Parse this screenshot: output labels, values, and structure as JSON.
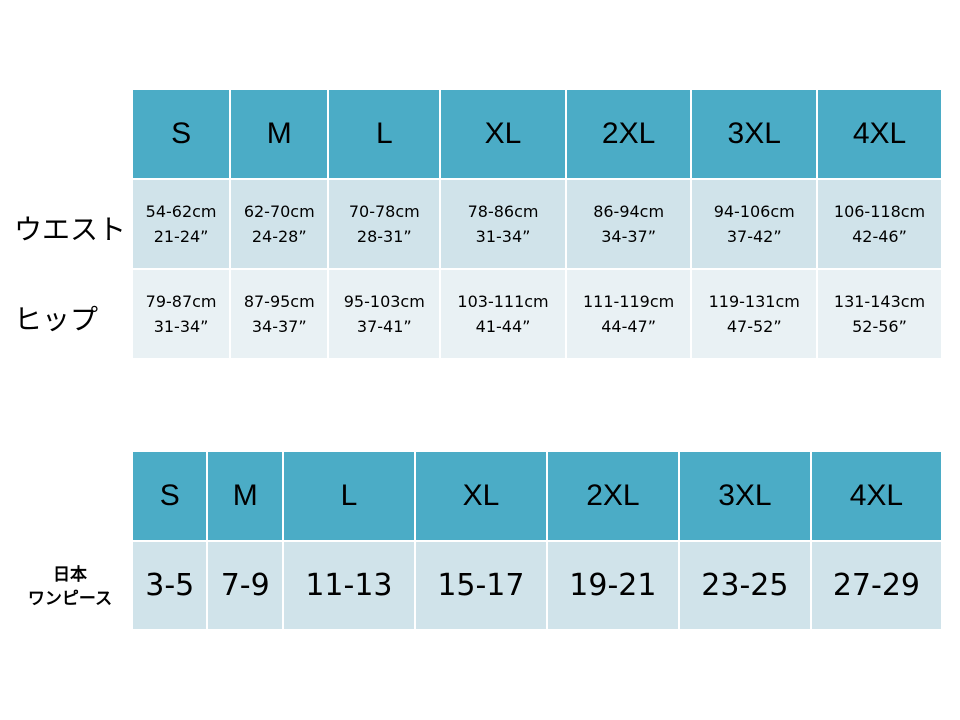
{
  "colors": {
    "header": "#4BACC6",
    "row_odd": "#D0E3EA",
    "row_even": "#E9F1F4"
  },
  "sizes": [
    "S",
    "M",
    "L",
    "XL",
    "2XL",
    "3XL",
    "4XL"
  ],
  "table1": {
    "rows": [
      {
        "label": "ウエスト",
        "cells": [
          {
            "cm": "54-62cm",
            "in": "21-24”"
          },
          {
            "cm": "62-70cm",
            "in": "24-28”"
          },
          {
            "cm": "70-78cm",
            "in": "28-31”"
          },
          {
            "cm": "78-86cm",
            "in": "31-34”"
          },
          {
            "cm": "86-94cm",
            "in": "34-37”"
          },
          {
            "cm": "94-106cm",
            "in": "37-42”"
          },
          {
            "cm": "106-118cm",
            "in": "42-46”"
          }
        ]
      },
      {
        "label": "ヒップ",
        "cells": [
          {
            "cm": "79-87cm",
            "in": "31-34”"
          },
          {
            "cm": "87-95cm",
            "in": "34-37”"
          },
          {
            "cm": "95-103cm",
            "in": "37-41”"
          },
          {
            "cm": "103-111cm",
            "in": "41-44”"
          },
          {
            "cm": "111-119cm",
            "in": "44-47”"
          },
          {
            "cm": "119-131cm",
            "in": "47-52”"
          },
          {
            "cm": "131-143cm",
            "in": "52-56”"
          }
        ]
      }
    ]
  },
  "table2": {
    "label_line1": "日本",
    "label_line2": "ワンピース",
    "values": [
      "3-5",
      "7-9",
      "11-13",
      "15-17",
      "19-21",
      "23-25",
      "27-29"
    ]
  }
}
